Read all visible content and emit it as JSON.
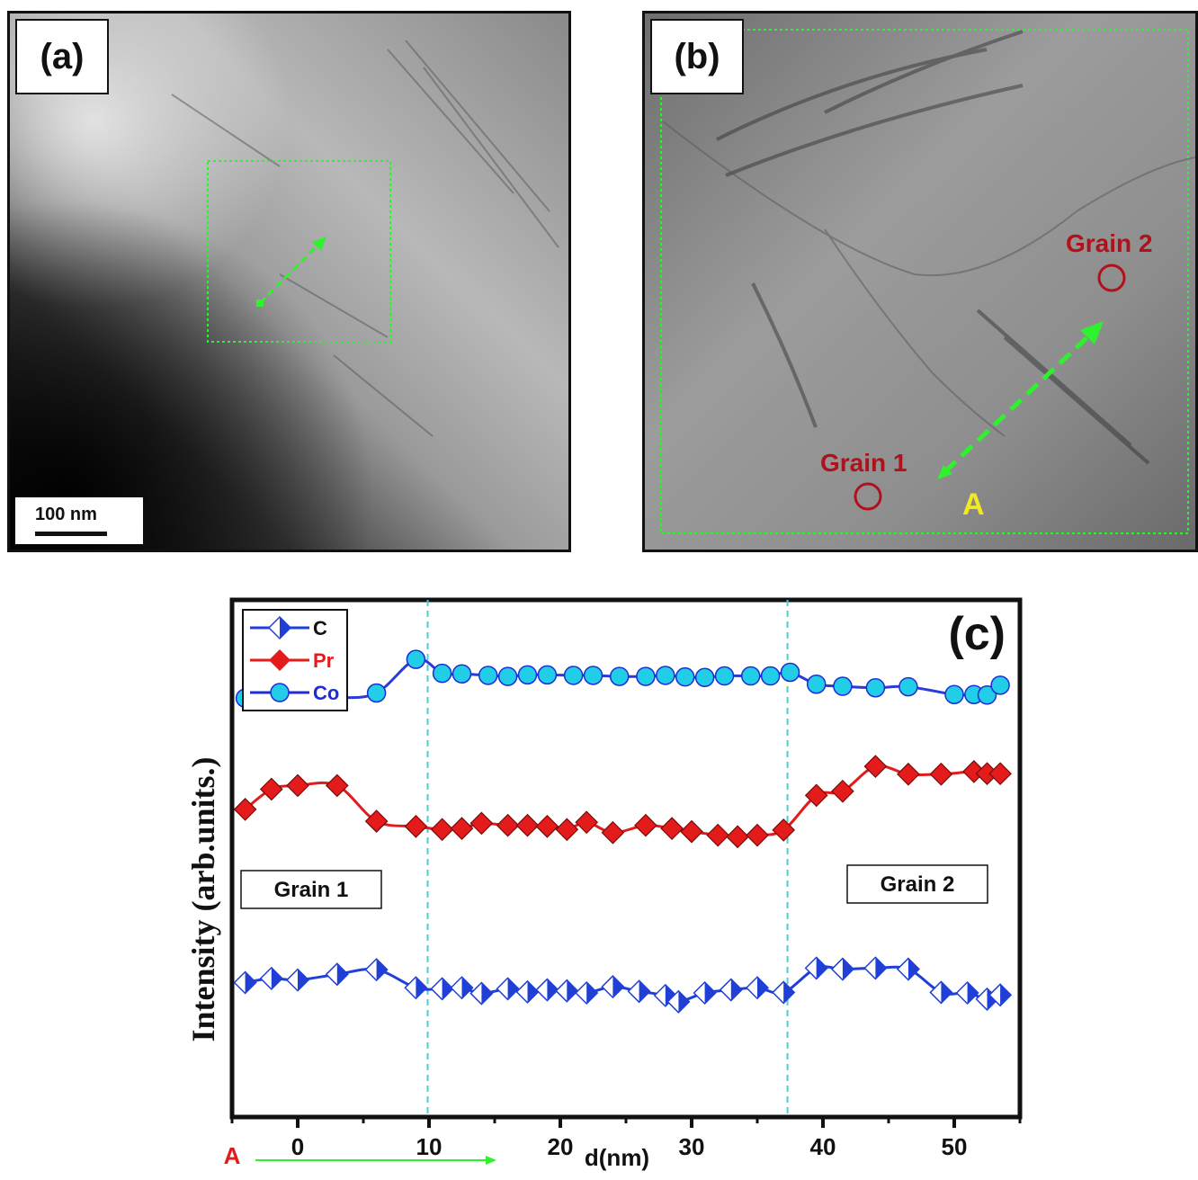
{
  "panel_a": {
    "label": "(a)",
    "scale_bar": "100 nm"
  },
  "panel_b": {
    "label": "(b)",
    "grain1_label": "Grain 1",
    "grain2_label": "Grain 2",
    "point_label": "A"
  },
  "chart_data": {
    "type": "line",
    "panel_label": "(c)",
    "xlabel": "d(nm)",
    "ylabel": "Intensity (arb.units.)",
    "xlim": [
      -5,
      55
    ],
    "ylim": [
      0,
      10
    ],
    "xticks": [
      0,
      10,
      20,
      30,
      40,
      50
    ],
    "yticks_shown": false,
    "boundaries_x": [
      9.9,
      37.3
    ],
    "region_labels": [
      "Grain 1",
      "Grain 2"
    ],
    "start_marker_label": "A",
    "legend": {
      "position": "top-left",
      "entries": [
        "C",
        "Pr",
        "Co"
      ]
    },
    "series": [
      {
        "name": "C",
        "color": "#1f3fd6",
        "marker": "half-filled-diamond",
        "x": [
          -4,
          -2,
          0,
          3,
          6,
          9,
          11,
          12.5,
          14,
          16,
          17.5,
          19,
          20.5,
          22,
          24,
          26,
          28,
          29,
          31,
          33,
          35,
          37,
          39.5,
          41.5,
          44,
          46.5,
          49,
          51,
          52.5,
          53.5
        ],
        "y": [
          2.6,
          2.68,
          2.65,
          2.76,
          2.85,
          2.5,
          2.48,
          2.5,
          2.39,
          2.48,
          2.42,
          2.46,
          2.44,
          2.4,
          2.52,
          2.43,
          2.35,
          2.23,
          2.4,
          2.46,
          2.5,
          2.41,
          2.88,
          2.86,
          2.88,
          2.86,
          2.41,
          2.4,
          2.28,
          2.36
        ]
      },
      {
        "name": "Pr",
        "color": "#e31b1b",
        "marker": "diamond",
        "x": [
          -4,
          -2,
          0,
          3,
          6,
          9,
          11,
          12.5,
          14,
          16,
          17.5,
          19,
          20.5,
          22,
          24,
          26.5,
          28.5,
          30,
          32,
          33.5,
          35,
          37,
          39.5,
          41.5,
          44,
          46.5,
          49,
          51.5,
          52.5,
          53.5
        ],
        "y": [
          5.95,
          6.34,
          6.41,
          6.41,
          5.72,
          5.62,
          5.56,
          5.58,
          5.68,
          5.64,
          5.64,
          5.62,
          5.56,
          5.7,
          5.5,
          5.64,
          5.58,
          5.52,
          5.45,
          5.42,
          5.45,
          5.55,
          6.22,
          6.3,
          6.78,
          6.63,
          6.63,
          6.68,
          6.64,
          6.64
        ]
      },
      {
        "name": "Co",
        "color": "#1e2bd6",
        "fill": "#22cde8",
        "marker": "circle",
        "x": [
          -4,
          -2,
          0,
          3,
          6,
          9,
          11,
          12.5,
          14.5,
          16,
          17.5,
          19,
          21,
          22.5,
          24.5,
          26.5,
          28,
          29.5,
          31,
          32.5,
          34.5,
          36,
          37.5,
          39.5,
          41.5,
          44,
          46.5,
          50,
          51.5,
          52.5,
          53.5
        ],
        "y": [
          8.1,
          8.15,
          8.15,
          8.11,
          8.2,
          8.85,
          8.58,
          8.57,
          8.54,
          8.52,
          8.55,
          8.55,
          8.54,
          8.54,
          8.52,
          8.52,
          8.54,
          8.51,
          8.5,
          8.53,
          8.53,
          8.53,
          8.6,
          8.37,
          8.33,
          8.3,
          8.32,
          8.17,
          8.17,
          8.16,
          8.35
        ]
      }
    ]
  }
}
